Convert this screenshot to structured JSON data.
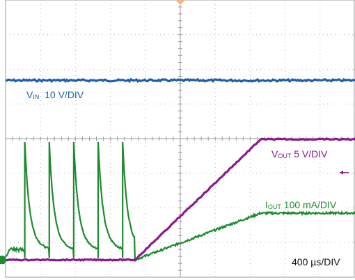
{
  "chart_data": {
    "type": "line",
    "instrument": "oscilloscope",
    "grid": true,
    "divisions": {
      "x": 10,
      "y": 8
    },
    "timebase": {
      "label": "400 µs/DIV",
      "value_us_per_div": 400
    },
    "trigger_marker": "top-center",
    "series": [
      {
        "name": "VIN",
        "label_main": "V",
        "label_sub": "IN",
        "scale_text": "10 V/DIV",
        "color": "#1f5fa8",
        "points": [
          [
            0,
            1.68
          ],
          [
            10,
            1.68
          ]
        ]
      },
      {
        "name": "VOUT",
        "label_main": "V",
        "label_sub": "OUT",
        "scale_text": "5 V/DIV",
        "color": "#8b1a8c",
        "points": [
          [
            0,
            -3.5
          ],
          [
            3.7,
            -3.5
          ],
          [
            7.3,
            -0.02
          ],
          [
            10,
            -0.02
          ]
        ]
      },
      {
        "name": "IOUT",
        "label_main": "I",
        "label_sub": "OUT",
        "scale_text": "100 mA/DIV",
        "color": "#1e8a2f",
        "pulse_times_div": [
          0.55,
          1.25,
          1.95,
          2.65,
          3.35
        ],
        "pulse_peak_div": -0.1,
        "baseline_div": -3.5,
        "ramp": [
          [
            3.7,
            -3.5
          ],
          [
            7.3,
            -2.15
          ],
          [
            10,
            -2.15
          ]
        ]
      }
    ],
    "markers": {
      "vout_ref_arrow": "right",
      "ch_ground_marker_color": "#1e8a2f"
    }
  }
}
